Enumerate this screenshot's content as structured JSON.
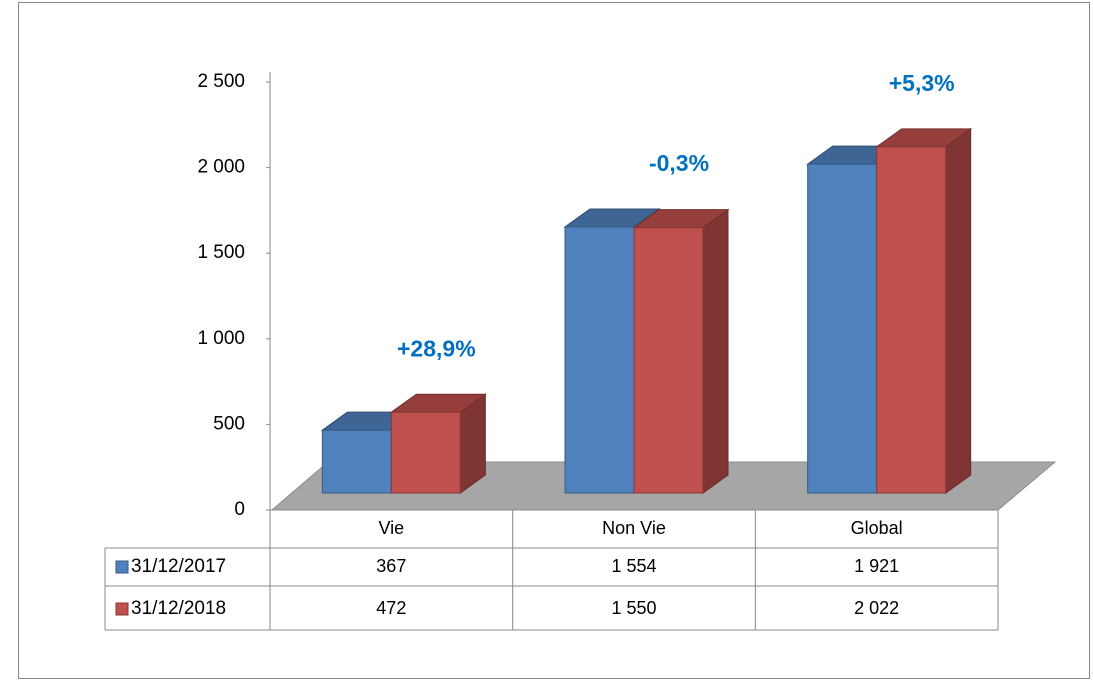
{
  "chart_data": {
    "type": "bar3d",
    "categories": [
      "Vie",
      "Non Vie",
      "Global"
    ],
    "series": [
      {
        "name": "31/12/2017",
        "color": "#4f81bd",
        "values": [
          367,
          1554,
          1921
        ],
        "value_labels": [
          "367",
          "1 554",
          "1 921"
        ]
      },
      {
        "name": "31/12/2018",
        "color": "#c0504d",
        "values": [
          472,
          1550,
          2022
        ],
        "value_labels": [
          "472",
          "1 550",
          "2 022"
        ]
      }
    ],
    "annotations": [
      "+28,9%",
      "-0,3%",
      "+5,3%"
    ],
    "ylim": [
      0,
      2500
    ],
    "yticks": [
      0,
      500,
      {
        "value": 1000,
        "label": "1 000"
      },
      {
        "value": 1500,
        "label": "1 500"
      },
      {
        "value": 2000,
        "label": "2 000"
      },
      {
        "value": 2500,
        "label": "2 500"
      }
    ],
    "legend": "table"
  }
}
